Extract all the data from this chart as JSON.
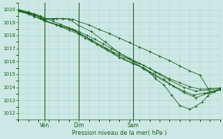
{
  "background_color": "#cce8e4",
  "grid_color": "#a8d4d0",
  "line_color": "#1a5c1a",
  "xlabel": "Pression niveau de la mer( hPa )",
  "xlabel_color": "#1a5c1a",
  "tick_color": "#1a5c1a",
  "ylim": [
    1011.5,
    1020.5
  ],
  "yticks": [
    1012,
    1013,
    1014,
    1015,
    1016,
    1017,
    1018,
    1019,
    1020
  ],
  "xlim": [
    0,
    100
  ],
  "xtick_labels": [
    "Ven",
    "Dim",
    "Sam"
  ],
  "xtick_positions": [
    13,
    30,
    57
  ],
  "vline_positions": [
    13,
    30,
    57
  ],
  "series": [
    {
      "x": [
        0,
        5,
        8,
        11,
        13,
        17,
        21,
        25,
        30,
        34,
        38,
        42,
        46,
        50,
        55,
        60,
        65,
        70,
        75,
        80,
        85,
        90,
        95,
        100
      ],
      "y": [
        1020.0,
        1019.8,
        1019.65,
        1019.5,
        1019.35,
        1019.1,
        1018.85,
        1018.6,
        1018.3,
        1018.0,
        1017.7,
        1017.35,
        1017.0,
        1016.65,
        1016.25,
        1015.85,
        1015.45,
        1015.05,
        1014.65,
        1014.35,
        1014.05,
        1013.85,
        1013.9,
        1013.95
      ]
    },
    {
      "x": [
        0,
        5,
        8,
        11,
        13,
        17,
        22,
        27,
        30,
        35,
        40,
        45,
        50,
        55,
        60,
        65,
        70,
        75,
        80,
        85,
        90,
        95,
        100
      ],
      "y": [
        1019.9,
        1019.75,
        1019.6,
        1019.4,
        1019.2,
        1019.25,
        1019.3,
        1019.25,
        1019.05,
        1018.8,
        1018.45,
        1018.15,
        1017.8,
        1017.45,
        1017.1,
        1016.75,
        1016.4,
        1016.05,
        1015.65,
        1015.25,
        1014.95,
        1013.65,
        1013.85
      ]
    },
    {
      "x": [
        0,
        5,
        8,
        11,
        13,
        19,
        25,
        30,
        33,
        36,
        39,
        44,
        50,
        57,
        62,
        67,
        72,
        77,
        82,
        87,
        92,
        97,
        100
      ],
      "y": [
        1019.9,
        1019.7,
        1019.55,
        1019.35,
        1019.1,
        1018.8,
        1018.4,
        1018.1,
        1017.8,
        1017.55,
        1017.3,
        1016.85,
        1016.3,
        1015.8,
        1015.5,
        1015.05,
        1014.6,
        1014.1,
        1013.7,
        1013.4,
        1013.55,
        1013.65,
        1013.8
      ]
    },
    {
      "x": [
        0,
        5,
        8,
        13,
        21,
        28,
        30,
        36,
        43,
        50,
        57,
        62,
        68,
        75,
        82,
        88,
        94,
        100
      ],
      "y": [
        1019.85,
        1019.65,
        1019.45,
        1019.1,
        1018.7,
        1018.35,
        1018.15,
        1017.65,
        1017.05,
        1016.5,
        1016.0,
        1015.7,
        1015.15,
        1014.55,
        1014.0,
        1013.7,
        1013.8,
        1013.9
      ]
    },
    {
      "x": [
        0,
        5,
        8,
        13,
        21,
        27,
        30,
        35,
        41,
        47,
        52,
        57,
        62,
        65,
        68,
        72,
        76,
        80,
        85,
        88,
        91,
        94,
        97,
        100
      ],
      "y": [
        1019.85,
        1019.65,
        1019.45,
        1019.15,
        1018.75,
        1018.45,
        1018.2,
        1017.75,
        1017.2,
        1016.65,
        1016.2,
        1015.85,
        1015.5,
        1015.15,
        1014.65,
        1014.2,
        1013.4,
        1012.6,
        1012.3,
        1012.55,
        1012.85,
        1013.35,
        1013.65,
        1013.85
      ]
    },
    {
      "x": [
        0,
        5,
        13,
        19,
        25,
        30,
        36,
        43,
        50,
        57,
        62,
        68,
        75,
        82,
        88,
        94,
        100
      ],
      "y": [
        1019.95,
        1019.75,
        1019.3,
        1019.3,
        1019.25,
        1018.75,
        1018.3,
        1017.5,
        1016.65,
        1016.0,
        1015.4,
        1014.85,
        1014.25,
        1013.6,
        1013.2,
        1013.55,
        1013.8
      ]
    }
  ]
}
